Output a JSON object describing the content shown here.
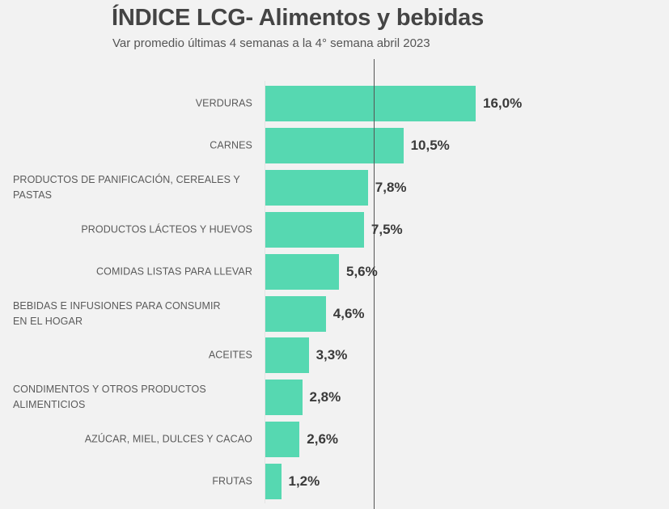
{
  "header": {
    "title": "ÍNDICE LCG- Alimentos y bebidas",
    "subtitle": "Var promedio últimas 4 semanas a la 4° semana abril 2023"
  },
  "colors": {
    "bar": "#56d8b1",
    "background": "#f2f2f2",
    "reference_line": "#555555"
  },
  "chart_data": {
    "type": "bar",
    "orientation": "horizontal",
    "title": "ÍNDICE LCG- Alimentos y bebidas",
    "subtitle": "Var promedio últimas 4 semanas a la 4° semana abril 2023",
    "xlabel": "",
    "ylabel": "",
    "categories": [
      "VERDURAS",
      "CARNES",
      "PRODUCTOS DE PANIFICACIÓN, CEREALES Y PASTAS",
      "PRODUCTOS LÁCTEOS Y HUEVOS",
      "COMIDAS LISTAS PARA LLEVAR",
      "BEBIDAS E INFUSIONES PARA CONSUMIR EN EL HOGAR",
      "ACEITES",
      "CONDIMENTOS Y OTROS PRODUCTOS ALIMENTICIOS",
      "AZÚCAR, MIEL, DULCES Y CACAO",
      "FRUTAS"
    ],
    "values": [
      16.0,
      10.5,
      7.8,
      7.5,
      5.6,
      4.6,
      3.3,
      2.8,
      2.6,
      1.2
    ],
    "value_labels": [
      "16,0%",
      "10,5%",
      "7,8%",
      "7,5%",
      "5,6%",
      "4,6%",
      "3,3%",
      "2,8%",
      "2,6%",
      "1,2%"
    ],
    "unit": "%",
    "reference_line": {
      "value": 8.3,
      "label": ""
    },
    "xlim": [
      0,
      16
    ],
    "grid": false,
    "legend": null
  },
  "rows": [
    {
      "line1": "VERDURAS",
      "line2": "",
      "value": 16.0,
      "label": "16,0%"
    },
    {
      "line1": "CARNES",
      "line2": "",
      "value": 10.5,
      "label": "10,5%"
    },
    {
      "line1": "PRODUCTOS DE PANIFICACIÓN, CEREALES Y",
      "line2": "PASTAS",
      "value": 7.8,
      "label": "7,8%"
    },
    {
      "line1": "PRODUCTOS LÁCTEOS Y HUEVOS",
      "line2": "",
      "value": 7.5,
      "label": "7,5%"
    },
    {
      "line1": "COMIDAS LISTAS PARA LLEVAR",
      "line2": "",
      "value": 5.6,
      "label": "5,6%"
    },
    {
      "line1": "BEBIDAS E INFUSIONES PARA CONSUMIR",
      "line2": "EN EL HOGAR",
      "value": 4.6,
      "label": "4,6%"
    },
    {
      "line1": "ACEITES",
      "line2": "",
      "value": 3.3,
      "label": "3,3%"
    },
    {
      "line1": "CONDIMENTOS Y OTROS PRODUCTOS",
      "line2": "ALIMENTICIOS",
      "value": 2.8,
      "label": "2,8%"
    },
    {
      "line1": "AZÚCAR, MIEL, DULCES Y CACAO",
      "line2": "",
      "value": 2.6,
      "label": "2,6%"
    },
    {
      "line1": "FRUTAS",
      "line2": "",
      "value": 1.2,
      "label": "1,2%"
    }
  ]
}
